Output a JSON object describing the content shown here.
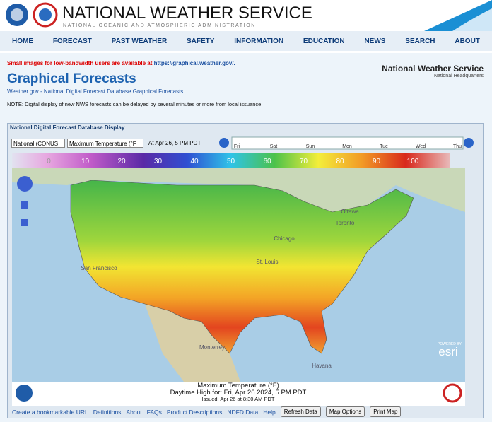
{
  "header": {
    "title": "NATIONAL WEATHER SERVICE",
    "subtitle": "NATIONAL OCEANIC AND ATMOSPHERIC ADMINISTRATION"
  },
  "nav": [
    "HOME",
    "FORECAST",
    "PAST WEATHER",
    "SAFETY",
    "INFORMATION",
    "EDUCATION",
    "NEWS",
    "SEARCH",
    "ABOUT"
  ],
  "notice": {
    "text": "Small images for low-bandwidth users are available at ",
    "link": "https://graphical.weather.gov/."
  },
  "page": {
    "title": "Graphical Forecasts",
    "breadcrumb": "Weather.gov - National Digital Forecast Database Graphical Forecasts",
    "note": "NOTE: Digital display of new NWS forecasts can be delayed by several minutes or more from local issuance.",
    "office": "National Weather Service",
    "office_sub": "National Headquarters"
  },
  "panel": {
    "title": "National Digital Forecast Database Display",
    "region": "National (CONUS",
    "element": "Maximum Temperature (°F",
    "time": "At Apr 26,  5 PM PDT",
    "days": [
      "Fri",
      "Sat",
      "Sun",
      "Mon",
      "Tue",
      "Wed",
      "Thu"
    ]
  },
  "legend": {
    "ticks": [
      0,
      10,
      20,
      30,
      40,
      50,
      60,
      70,
      80,
      90,
      100
    ]
  },
  "map": {
    "places": [
      "Ottawa",
      "Toronto",
      "Chicago",
      "St. Louis",
      "San Francisco",
      "Monterrey",
      "Havana"
    ],
    "credit_top": "POWERED BY",
    "credit": "esri"
  },
  "caption": {
    "line1": "Maximum Temperature (°F)",
    "line2": "Daytime High for: Fri, Apr 26 2024,  5 PM PDT",
    "line3": "Issued: Apr 26 at 8:30 AM PDT"
  },
  "footer": {
    "links": [
      "Create a bookmarkable URL",
      "Definitions",
      "About",
      "FAQs",
      "Product Descriptions",
      "NDFD Data",
      "Help"
    ],
    "buttons": [
      "Refresh Data",
      "Map Options",
      "Print Map"
    ]
  }
}
